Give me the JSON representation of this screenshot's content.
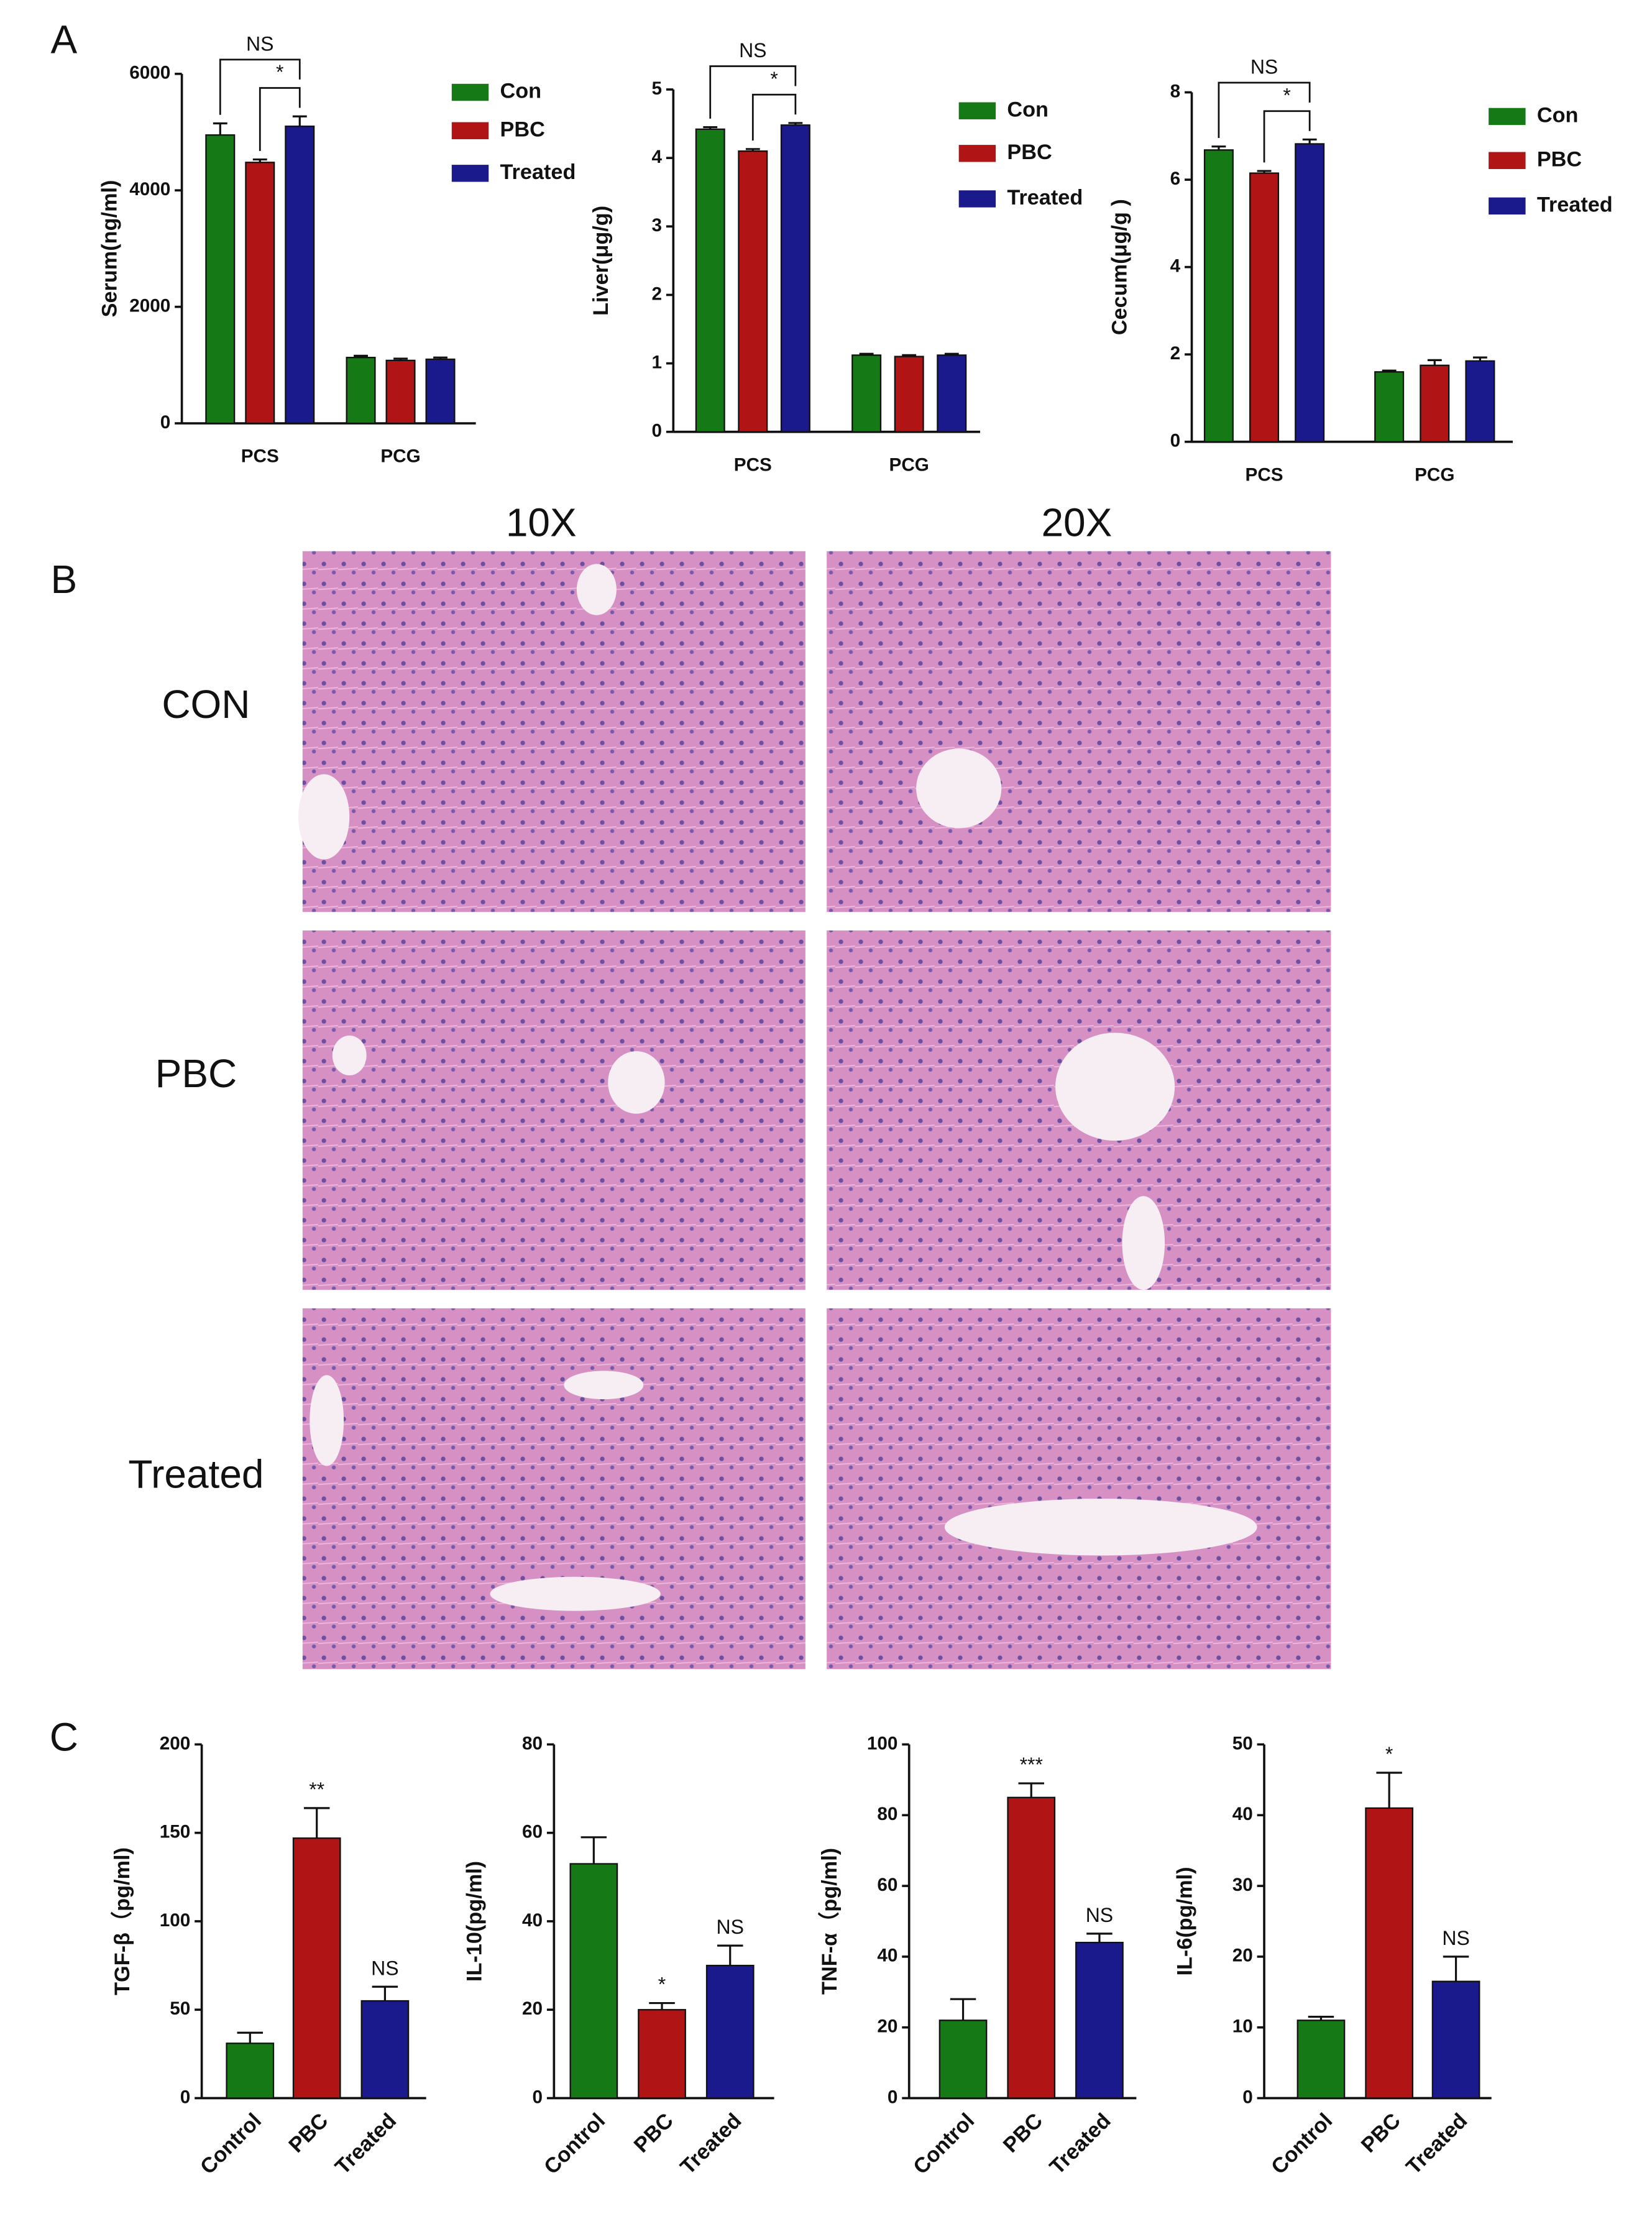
{
  "panel_labels": [
    "A",
    "B",
    "C"
  ],
  "histology": {
    "columns": [
      "10X",
      "20X"
    ],
    "rows": [
      "CON",
      "PBC",
      "Treated"
    ]
  },
  "chart_data": [
    {
      "type": "grouped_bar",
      "y_label": "Serum(ng/ml)",
      "categories": [
        "PCS",
        "PCG"
      ],
      "series": [
        {
          "name": "Con",
          "color": "#157a15",
          "values": [
            4950,
            1130
          ],
          "errors": [
            200,
            30
          ]
        },
        {
          "name": "PBC",
          "color": "#b01414",
          "values": [
            4480,
            1080
          ],
          "errors": [
            50,
            30
          ]
        },
        {
          "name": "Treated",
          "color": "#1a1a8c",
          "values": [
            5100,
            1100
          ],
          "errors": [
            170,
            30
          ]
        }
      ],
      "ylim": [
        0,
        6000
      ],
      "yticks": [
        0,
        2000,
        4000,
        6000
      ],
      "significance": [
        "NS",
        "*"
      ]
    },
    {
      "type": "grouped_bar",
      "y_label": "Liver(μg/g)",
      "categories": [
        "PCS",
        "PCG"
      ],
      "series": [
        {
          "name": "Con",
          "color": "#157a15",
          "values": [
            4.42,
            1.12
          ],
          "errors": [
            0.03,
            0.02
          ]
        },
        {
          "name": "PBC",
          "color": "#b01414",
          "values": [
            4.1,
            1.1
          ],
          "errors": [
            0.03,
            0.02
          ]
        },
        {
          "name": "Treated",
          "color": "#1a1a8c",
          "values": [
            4.48,
            1.12
          ],
          "errors": [
            0.03,
            0.02
          ]
        }
      ],
      "ylim": [
        0,
        5
      ],
      "yticks": [
        0,
        1,
        2,
        3,
        4,
        5
      ],
      "significance": [
        "NS",
        "*"
      ]
    },
    {
      "type": "grouped_bar",
      "y_label": "Cecum(μg/g )",
      "categories": [
        "PCS",
        "PCG"
      ],
      "series": [
        {
          "name": "Con",
          "color": "#157a15",
          "values": [
            6.68,
            1.6
          ],
          "errors": [
            0.08,
            0.03
          ]
        },
        {
          "name": "PBC",
          "color": "#b01414",
          "values": [
            6.15,
            1.75
          ],
          "errors": [
            0.05,
            0.12
          ]
        },
        {
          "name": "Treated",
          "color": "#1a1a8c",
          "values": [
            6.82,
            1.85
          ],
          "errors": [
            0.1,
            0.08
          ]
        }
      ],
      "ylim": [
        0,
        8
      ],
      "yticks": [
        0,
        2,
        4,
        6,
        8
      ],
      "significance": [
        "NS",
        "*"
      ]
    },
    {
      "type": "bar",
      "y_label": "TGF-β（pg/ml)",
      "categories": [
        "Control",
        "PBC",
        "Treated"
      ],
      "values": [
        31,
        147,
        55
      ],
      "errors": [
        6,
        17,
        8
      ],
      "colors": [
        "#157a15",
        "#b01414",
        "#1a1a8c"
      ],
      "annotations": [
        null,
        "**",
        "NS"
      ],
      "ylim": [
        0,
        200
      ],
      "yticks": [
        0,
        50,
        100,
        150,
        200
      ]
    },
    {
      "type": "bar",
      "y_label": "IL-10(pg/ml)",
      "categories": [
        "Control",
        "PBC",
        "Treated"
      ],
      "values": [
        53,
        20,
        30
      ],
      "errors": [
        6,
        1.5,
        4.5
      ],
      "colors": [
        "#157a15",
        "#b01414",
        "#1a1a8c"
      ],
      "annotations": [
        null,
        "*",
        "NS"
      ],
      "ylim": [
        0,
        80
      ],
      "yticks": [
        0,
        20,
        40,
        60,
        80
      ]
    },
    {
      "type": "bar",
      "y_label": "TNF-α（pg/ml)",
      "categories": [
        "Control",
        "PBC",
        "Treated"
      ],
      "values": [
        22,
        85,
        44
      ],
      "errors": [
        6,
        4,
        2.5
      ],
      "colors": [
        "#157a15",
        "#b01414",
        "#1a1a8c"
      ],
      "annotations": [
        null,
        "***",
        "NS"
      ],
      "ylim": [
        0,
        100
      ],
      "yticks": [
        0,
        20,
        40,
        60,
        80,
        100
      ]
    },
    {
      "type": "bar",
      "y_label": "IL-6(pg/ml)",
      "categories": [
        "Control",
        "PBC",
        "Treated"
      ],
      "values": [
        11,
        41,
        16.5
      ],
      "errors": [
        0.5,
        5,
        3.5
      ],
      "colors": [
        "#157a15",
        "#b01414",
        "#1a1a8c"
      ],
      "annotations": [
        null,
        "*",
        "NS"
      ],
      "ylim": [
        0,
        50
      ],
      "yticks": [
        0,
        10,
        20,
        30,
        40,
        50
      ]
    }
  ]
}
